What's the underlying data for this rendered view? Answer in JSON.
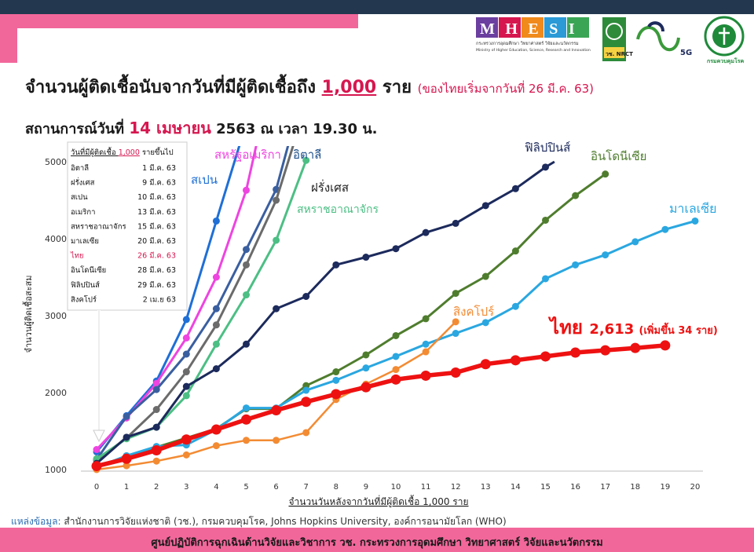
{
  "header": {
    "logo_mhesi": "MHESI",
    "logo_mhesi_th": "กระทรวงการอุดมศึกษา วิทยาศาสตร์ วิจัยและนวัตกรรม",
    "logo_mhesi_en": "Ministry of Higher Education, Science, Research and Innovation",
    "logo_nrct": "วช. NRCT",
    "logo_5g": "5G",
    "logo_ddc": "กรมควบคุมโรค"
  },
  "title": {
    "main": "จำนวนผู้ติดเชื้อนับจากวันที่มีผู้ติดเชื้อถึง",
    "highlight": "1,000",
    "unit": "ราย",
    "note": "(ของไทยเริ่มจากวันที่ 26 มี.ค. 63)"
  },
  "subtitle": {
    "prefix": "สถานการณ์วันที่",
    "date": "14 เมษายน",
    "rest": "2563 ณ เวลา 19.30 น."
  },
  "colors": {
    "pink": "#f2679a",
    "navy": "#23384f",
    "red": "#ee1111",
    "accent": "#d6164f"
  },
  "chart_data": {
    "type": "line",
    "xlabel": "จำนวนวันหลังจากวันที่มีผู้ติดเชื้อ 1,000 ราย",
    "ylabel": "จำนวนผู้ติดเชื้อสะสม",
    "xlim": [
      0,
      20
    ],
    "ylim": [
      1000,
      5000
    ],
    "x_ticks": [
      0,
      1,
      2,
      3,
      4,
      5,
      6,
      7,
      8,
      9,
      10,
      11,
      12,
      13,
      14,
      15,
      16,
      17,
      18,
      19,
      20
    ],
    "y_ticks": [
      1000,
      2000,
      3000,
      4000,
      5000
    ],
    "series": [
      {
        "name": "สเปน",
        "color": "#1f6fd6",
        "width": 3,
        "points": [
          [
            0,
            1230
          ],
          [
            1,
            1700
          ],
          [
            2,
            2150
          ],
          [
            3,
            2950
          ],
          [
            4,
            4230
          ],
          [
            5,
            5500
          ]
        ]
      },
      {
        "name": "สหรัฐอเมริกา",
        "color": "#ee44e0",
        "width": 3,
        "points": [
          [
            0,
            1260
          ],
          [
            1,
            1670
          ],
          [
            2,
            2120
          ],
          [
            3,
            2710
          ],
          [
            4,
            3500
          ],
          [
            5,
            4630
          ],
          [
            5.5,
            5500
          ]
        ]
      },
      {
        "name": "อิตาลี",
        "color": "#3a5fa0",
        "width": 3,
        "points": [
          [
            0,
            1130
          ],
          [
            1,
            1690
          ],
          [
            2,
            2040
          ],
          [
            3,
            2500
          ],
          [
            4,
            3090
          ],
          [
            5,
            3860
          ],
          [
            6,
            4640
          ],
          [
            6.6,
            5500
          ]
        ]
      },
      {
        "name": "ฝรั่งเศส",
        "color": "#6b6b6b",
        "width": 3,
        "points": [
          [
            0,
            1120
          ],
          [
            1,
            1410
          ],
          [
            2,
            1780
          ],
          [
            3,
            2270
          ],
          [
            4,
            2880
          ],
          [
            5,
            3660
          ],
          [
            6,
            4500
          ],
          [
            6.8,
            5500
          ]
        ]
      },
      {
        "name": "สหราชอาณาจักร",
        "color": "#4cbf84",
        "width": 3,
        "points": [
          [
            0,
            1140
          ],
          [
            1,
            1400
          ],
          [
            2,
            1550
          ],
          [
            3,
            1960
          ],
          [
            4,
            2630
          ],
          [
            5,
            3270
          ],
          [
            6,
            3980
          ],
          [
            7,
            5018
          ]
        ]
      },
      {
        "name": "ฟิลิปปินส์",
        "color": "#1c2a5c",
        "width": 3,
        "points": [
          [
            0,
            1080
          ],
          [
            1,
            1420
          ],
          [
            2,
            1550
          ],
          [
            3,
            2080
          ],
          [
            4,
            2310
          ],
          [
            5,
            2630
          ],
          [
            6,
            3090
          ],
          [
            7,
            3250
          ],
          [
            8,
            3660
          ],
          [
            9,
            3760
          ],
          [
            10,
            3870
          ],
          [
            11,
            4080
          ],
          [
            12,
            4200
          ],
          [
            13,
            4430
          ],
          [
            14,
            4650
          ],
          [
            15,
            4930
          ],
          [
            15.3,
            5000
          ]
        ]
      },
      {
        "name": "อินโดนีเซีย",
        "color": "#4f7d2e",
        "width": 3,
        "points": [
          [
            0,
            1050
          ],
          [
            1,
            1160
          ],
          [
            2,
            1290
          ],
          [
            3,
            1410
          ],
          [
            4,
            1530
          ],
          [
            5,
            1790
          ],
          [
            6,
            1790
          ],
          [
            7,
            2090
          ],
          [
            8,
            2270
          ],
          [
            9,
            2490
          ],
          [
            10,
            2740
          ],
          [
            11,
            2960
          ],
          [
            12,
            3290
          ],
          [
            13,
            3510
          ],
          [
            14,
            3840
          ],
          [
            15,
            4240
          ],
          [
            16,
            4560
          ],
          [
            17,
            4840
          ]
        ]
      },
      {
        "name": "มาเลเซีย",
        "color": "#2aa7e0",
        "width": 3,
        "points": [
          [
            0,
            1030
          ],
          [
            1,
            1180
          ],
          [
            2,
            1300
          ],
          [
            3,
            1320
          ],
          [
            4,
            1520
          ],
          [
            5,
            1800
          ],
          [
            6,
            1800
          ],
          [
            7,
            2030
          ],
          [
            8,
            2160
          ],
          [
            9,
            2320
          ],
          [
            10,
            2470
          ],
          [
            11,
            2630
          ],
          [
            12,
            2770
          ],
          [
            13,
            2910
          ],
          [
            14,
            3120
          ],
          [
            15,
            3480
          ],
          [
            16,
            3660
          ],
          [
            17,
            3790
          ],
          [
            18,
            3960
          ],
          [
            19,
            4120
          ],
          [
            20,
            4230
          ]
        ]
      },
      {
        "name": "สิงคโปร์",
        "color": "#f38b33",
        "width": 2.5,
        "points": [
          [
            0,
            1000
          ],
          [
            1,
            1050
          ],
          [
            2,
            1110
          ],
          [
            3,
            1190
          ],
          [
            4,
            1310
          ],
          [
            5,
            1380
          ],
          [
            6,
            1380
          ],
          [
            7,
            1480
          ],
          [
            8,
            1910
          ],
          [
            9,
            2110
          ],
          [
            10,
            2300
          ],
          [
            11,
            2530
          ],
          [
            12,
            2920
          ]
        ]
      },
      {
        "name": "ไทย",
        "color": "#ee1111",
        "width": 5.5,
        "points": [
          [
            0,
            1045
          ],
          [
            1,
            1140
          ],
          [
            2,
            1250
          ],
          [
            3,
            1390
          ],
          [
            4,
            1520
          ],
          [
            5,
            1650
          ],
          [
            6,
            1770
          ],
          [
            7,
            1880
          ],
          [
            8,
            1980
          ],
          [
            9,
            2070
          ],
          [
            10,
            2170
          ],
          [
            11,
            2220
          ],
          [
            12,
            2260
          ],
          [
            13,
            2370
          ],
          [
            14,
            2420
          ],
          [
            15,
            2470
          ],
          [
            16,
            2520
          ],
          [
            17,
            2550
          ],
          [
            18,
            2580
          ],
          [
            19,
            2613
          ]
        ]
      }
    ],
    "labels": {
      "spain": "สเปน",
      "usa": "สหรัฐอเมริกา",
      "italy": "อิตาลี",
      "france": "ฝรั่งเศส",
      "uk": "สหราชอาณาจักร",
      "philippines": "ฟิลิปปินส์",
      "indonesia": "อินโดนีเซีย",
      "malaysia": "มาเลเซีย",
      "singapore": "สิงคโปร์",
      "thailand": "ไทย",
      "thailand_value": "2,613",
      "thailand_note": "(เพิ่มขึ้น 34 ราย)"
    },
    "legend_table": {
      "header_a": "วันที่มีผู้ติดเชื้อ",
      "header_b": "1,000",
      "header_c": "รายขึ้นไป",
      "rows": [
        {
          "country": "อิตาลี",
          "date": "1 มี.ค. 63",
          "highlight": false
        },
        {
          "country": "ฝรั่งเศส",
          "date": "9 มี.ค. 63",
          "highlight": false
        },
        {
          "country": "สเปน",
          "date": "10 มี.ค. 63",
          "highlight": false
        },
        {
          "country": "อเมริกา",
          "date": "13 มี.ค. 63",
          "highlight": false
        },
        {
          "country": "สหราชอาณาจักร",
          "date": "15 มี.ค. 63",
          "highlight": false
        },
        {
          "country": "มาเลเซีย",
          "date": "20 มี.ค. 63",
          "highlight": false
        },
        {
          "country": "ไทย",
          "date": "26 มี.ค. 63",
          "highlight": true
        },
        {
          "country": "อินโดนีเซีย",
          "date": "28 มี.ค. 63",
          "highlight": false
        },
        {
          "country": "ฟิลิปปินส์",
          "date": "29 มี.ค. 63",
          "highlight": false
        },
        {
          "country": "สิงคโปร์",
          "date": "2 เม.ย 63",
          "highlight": false
        }
      ]
    },
    "grid": false
  },
  "source": {
    "label": "แหล่งข้อมูล:",
    "text": "สำนักงานการวิจัยแห่งชาติ (วช.), กรมควบคุมโรค, Johns Hopkins University, องค์การอนามัยโลก (WHO)"
  },
  "footer": {
    "text": "ศูนย์ปฏิบัติการฉุกเฉินด้านวิจัยและวิชาการ   วช.   กระทรวงการอุดมศึกษา วิทยาศาสตร์ วิจัยและนวัตกรรม"
  }
}
